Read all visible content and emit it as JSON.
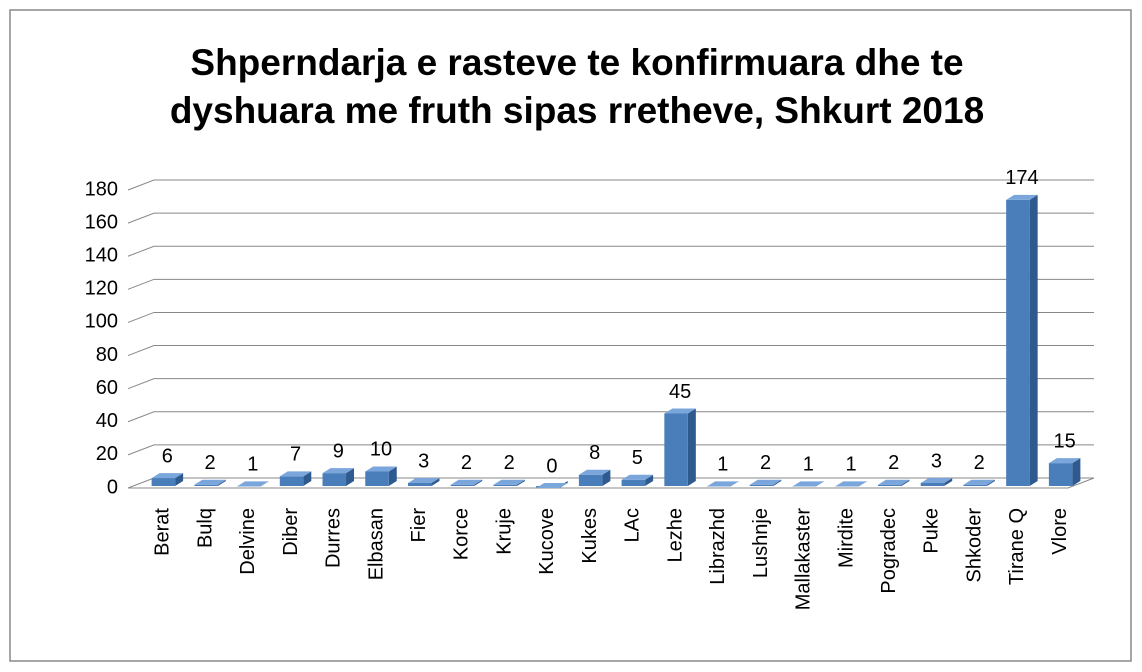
{
  "chart_data": {
    "type": "bar3d",
    "title": [
      "Shperndarja e rasteve te konfirmuara dhe te",
      "dyshuara me fruth sipas rretheve, Shkurt 2018"
    ],
    "categories": [
      "Berat",
      "Bulq",
      "Delvine",
      "Diber",
      "Durres",
      "Elbasan",
      "Fier",
      "Korce",
      "Kruje",
      "Kucove",
      "Kukes",
      "LAc",
      "Lezhe",
      "Librazhd",
      "Lushnje",
      "Mallakaster",
      "Mirdite",
      "Pogradec",
      "Puke",
      "Shkoder",
      "Tirane Q",
      "Vlore"
    ],
    "values": [
      6,
      2,
      1,
      7,
      9,
      10,
      3,
      2,
      2,
      0,
      8,
      5,
      45,
      1,
      2,
      1,
      1,
      2,
      3,
      2,
      174,
      15
    ],
    "color": "#4a7ebb",
    "ylim": [
      0,
      180
    ],
    "yticks": [
      0,
      20,
      40,
      60,
      80,
      100,
      120,
      140,
      160,
      180
    ],
    "grid": true
  }
}
